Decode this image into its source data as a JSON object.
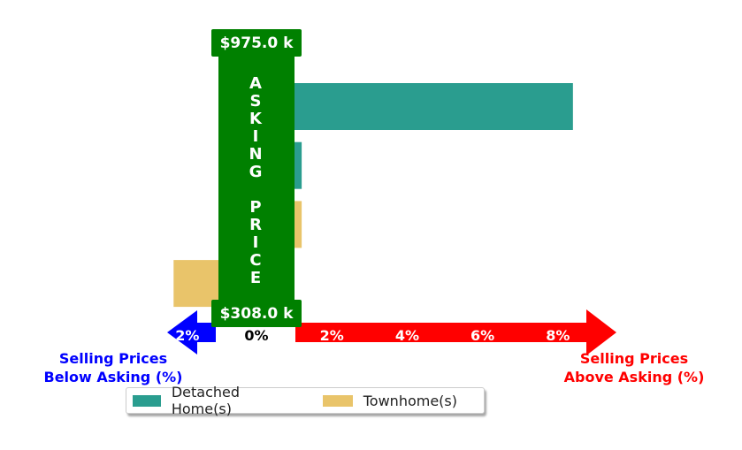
{
  "chart_data": {
    "type": "bar",
    "orientation": "horizontal",
    "title": "",
    "xlabel": "",
    "ylabel": "",
    "xlim": [
      -3.5,
      10
    ],
    "x_ticks": [
      {
        "value": -2,
        "label": "2%"
      },
      {
        "value": 0,
        "label": "0%"
      },
      {
        "value": 2,
        "label": "2%"
      },
      {
        "value": 4,
        "label": "4%"
      },
      {
        "value": 6,
        "label": "6%"
      },
      {
        "value": 8,
        "label": "8%"
      }
    ],
    "bars": [
      {
        "series": "Detached Home(s)",
        "value": 8.4
      },
      {
        "series": "Detached Home(s)",
        "value": 1.2
      },
      {
        "series": "Townhome(s)",
        "value": 1.2
      },
      {
        "series": "Townhome(s)",
        "value": -2.2
      }
    ],
    "series": [
      {
        "name": "Detached Home(s)",
        "color": "#2a9d8f"
      },
      {
        "name": "Townhome(s)",
        "color": "#e9c46a"
      }
    ],
    "asking_price_label": "ASKING PRICE",
    "price_high": "$975.0 k",
    "price_low": "$308.0 k",
    "left_label": [
      "Selling Prices",
      "Below Asking (%)"
    ],
    "right_label": [
      "Selling Prices",
      "Above Asking (%)"
    ],
    "colors": {
      "asking": "#008000",
      "below": "#0000ff",
      "above": "#ff0000"
    },
    "legend_position": "bottom-center"
  }
}
